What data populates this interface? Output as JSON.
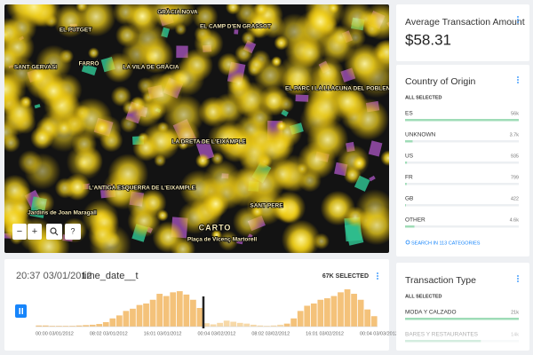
{
  "map": {
    "labels": [
      "GRÀCIA NOVA",
      "EL PUTGET",
      "SANT GERVASI",
      "FARRÓ",
      "LA VILA DE GRÀCIA",
      "EL CAMP D'EN GRASSOT",
      "EL PARC I LA LLACUNA DEL POBLENOU",
      "LA DRETA DE L'EIXAMPLE",
      "L'ANTIGA ESQUERRA DE L'EIXAMPLE",
      "SANT PERE",
      "Jardins de Joan Maragall",
      "Plaça de Vicenç Martorell",
      "CARTO"
    ],
    "controls": [
      "−",
      "+",
      "?"
    ]
  },
  "average": {
    "title": "Average Transaction Amount",
    "value": "$58.31"
  },
  "country": {
    "title": "Country of Origin",
    "status": "ALL SELECTED",
    "rows": [
      {
        "name": "ES",
        "value": 56000,
        "label": "56k"
      },
      {
        "name": "UNKNOWN",
        "value": 3700,
        "label": "3.7k"
      },
      {
        "name": "US",
        "value": 935,
        "label": "935"
      },
      {
        "name": "FR",
        "value": 799,
        "label": "799"
      },
      {
        "name": "GB",
        "value": 422,
        "label": "422"
      },
      {
        "name": "OTHER",
        "value": 4600,
        "label": "4.6k"
      }
    ],
    "search": "SEARCH IN 113 CATEGORIES"
  },
  "transaction": {
    "title": "Transaction Type",
    "status": "ALL SELECTED",
    "rows": [
      {
        "name": "MODA Y CALZADO",
        "value": 21000,
        "label": "21k"
      },
      {
        "name": "BARES Y RESTAURANTES",
        "value": 14000,
        "label": "14k"
      }
    ]
  },
  "timeline": {
    "time": "20:37 03/01/2012",
    "field": "time_date__t",
    "selected": "67K SELECTED",
    "ticks": [
      "00:00 03/01/2012",
      "08:02 03/01/2012",
      "16:01 03/01/2012",
      "00:04 03/02/2012",
      "08:02 03/02/2012",
      "16:01 03/02/2012",
      "00:04 03/03/2012"
    ],
    "values": [
      3,
      3,
      2,
      2,
      2,
      2,
      3,
      4,
      5,
      7,
      12,
      22,
      30,
      42,
      48,
      58,
      62,
      72,
      88,
      82,
      92,
      95,
      86,
      72,
      50,
      9,
      6,
      10,
      16,
      13,
      10,
      8,
      5,
      3,
      2,
      3,
      5,
      8,
      22,
      42,
      56,
      62,
      72,
      76,
      82,
      92,
      100,
      88,
      72,
      46,
      28
    ]
  }
}
